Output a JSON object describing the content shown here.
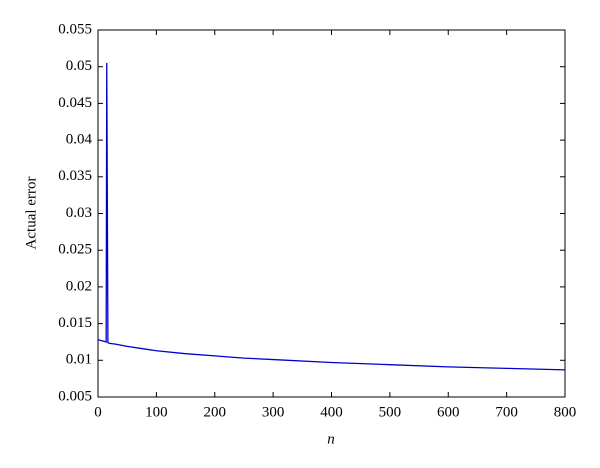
{
  "chart_data": {
    "type": "line",
    "xlabel": "n",
    "ylabel": "Actual error",
    "x": [
      0,
      5,
      10,
      14,
      15,
      17,
      20,
      30,
      50,
      75,
      100,
      150,
      200,
      250,
      300,
      400,
      500,
      600,
      700,
      800
    ],
    "series": [
      {
        "name": "Actual error",
        "color": "#0000cc",
        "values": [
          0.0128,
          0.0127,
          0.0126,
          0.0125,
          0.0505,
          0.0124,
          0.0123,
          0.0122,
          0.0119,
          0.0116,
          0.0113,
          0.0109,
          0.0106,
          0.0103,
          0.0101,
          0.0097,
          0.0094,
          0.0091,
          0.0089,
          0.0087
        ]
      }
    ],
    "xlim": [
      0,
      800
    ],
    "xticks": [
      0,
      100,
      200,
      300,
      400,
      500,
      600,
      700,
      800
    ],
    "ylim": [
      0.005,
      0.055
    ],
    "yticks": [
      0.005,
      0.01,
      0.015,
      0.02,
      0.025,
      0.03,
      0.035,
      0.04,
      0.045,
      0.05,
      0.055
    ]
  }
}
